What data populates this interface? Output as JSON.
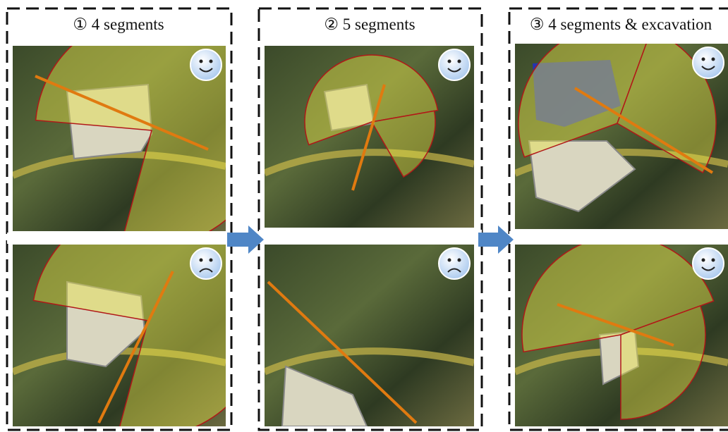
{
  "panels": [
    {
      "title": "① 4 segments"
    },
    {
      "title": "② 5 segments"
    },
    {
      "title": "③ 4 segments & excavation"
    }
  ]
}
